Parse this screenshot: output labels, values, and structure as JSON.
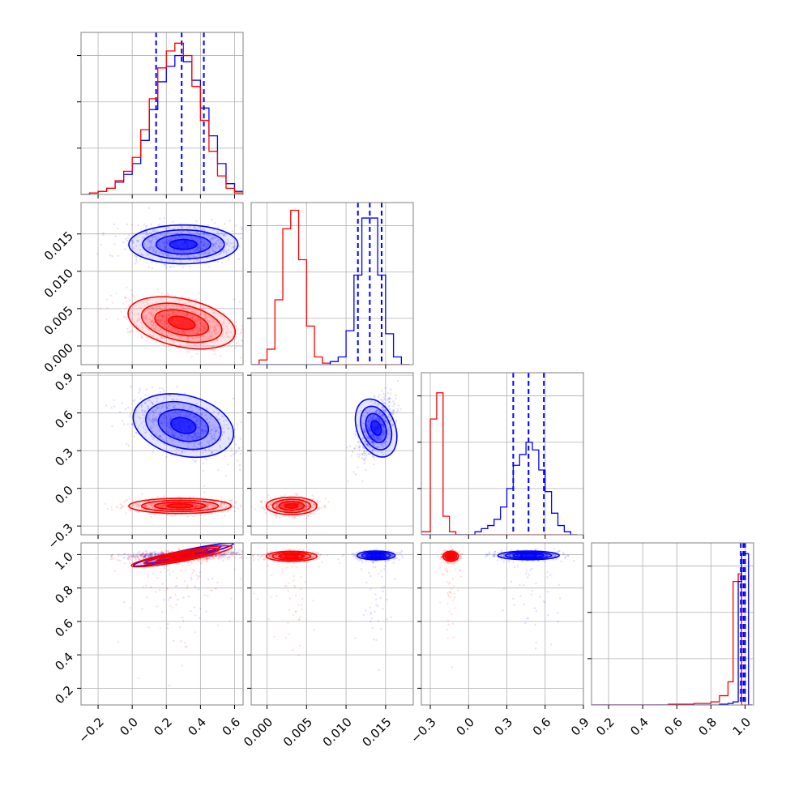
{
  "figure": {
    "type": "corner_plot",
    "colors": {
      "series_a": "#0000ff",
      "series_b": "#ff0000",
      "grid": "#b0b0b0",
      "frame": "#808080"
    }
  },
  "chart_data": [
    {
      "type": "histogram",
      "id": "hist-param1",
      "row": 0,
      "col": 0,
      "xlim": [
        -0.3,
        0.65
      ],
      "ylim": [
        0,
        1.05
      ],
      "bins": [
        -0.3,
        -0.25,
        -0.2,
        -0.15,
        -0.1,
        -0.05,
        0.0,
        0.05,
        0.1,
        0.15,
        0.2,
        0.25,
        0.3,
        0.35,
        0.4,
        0.45,
        0.5,
        0.55,
        0.6,
        0.65
      ],
      "series": [
        {
          "color": "#0000ff",
          "counts": [
            0.0,
            0.01,
            0.02,
            0.04,
            0.08,
            0.13,
            0.2,
            0.35,
            0.55,
            0.73,
            0.83,
            0.9,
            0.86,
            0.74,
            0.56,
            0.38,
            0.2,
            0.07,
            0.02
          ],
          "quantiles": [
            0.14,
            0.29,
            0.42
          ]
        },
        {
          "color": "#ff0000",
          "counts": [
            0.0,
            0.01,
            0.02,
            0.04,
            0.09,
            0.15,
            0.24,
            0.42,
            0.62,
            0.82,
            0.93,
            0.98,
            0.9,
            0.7,
            0.48,
            0.28,
            0.12,
            0.04,
            0.01
          ]
        }
      ],
      "xticks": [
        -0.2,
        0.0,
        0.2,
        0.4,
        0.6
      ]
    },
    {
      "type": "histogram",
      "id": "hist-param2",
      "row": 1,
      "col": 1,
      "xlim": [
        -0.002,
        0.0185
      ],
      "ylim": [
        0,
        1.05
      ],
      "bins": [
        -0.002,
        -0.001,
        0.0,
        0.001,
        0.002,
        0.003,
        0.004,
        0.005,
        0.006,
        0.007,
        0.008,
        0.009,
        0.01,
        0.011,
        0.012,
        0.013,
        0.014,
        0.015,
        0.016,
        0.017,
        0.018
      ],
      "series": [
        {
          "color": "#ff0000",
          "counts": [
            0.0,
            0.03,
            0.1,
            0.42,
            0.88,
            1.0,
            0.68,
            0.25,
            0.05,
            0.01,
            0.0,
            0.0,
            0.0,
            0.0,
            0.0,
            0.0,
            0.0,
            0.0,
            0.0,
            0.0
          ]
        },
        {
          "color": "#0000ff",
          "counts": [
            0.0,
            0.0,
            0.0,
            0.0,
            0.0,
            0.0,
            0.0,
            0.0,
            0.0,
            0.0,
            0.02,
            0.05,
            0.22,
            0.58,
            0.95,
            0.95,
            0.58,
            0.2,
            0.05,
            0.0
          ],
          "quantiles": [
            0.0115,
            0.013,
            0.0145
          ]
        }
      ],
      "xticks": [
        0.0,
        0.005,
        0.01,
        0.015
      ],
      "xticklabels": [
        "0.000",
        "0.005",
        "0.010",
        "0.015"
      ]
    },
    {
      "type": "histogram",
      "id": "hist-param3",
      "row": 2,
      "col": 2,
      "xlim": [
        -0.37,
        0.9
      ],
      "ylim": [
        0,
        1.05
      ],
      "bins": [
        -0.375,
        -0.3,
        -0.25,
        -0.2,
        -0.15,
        -0.1,
        -0.05,
        0.0,
        0.05,
        0.1,
        0.15,
        0.2,
        0.25,
        0.3,
        0.35,
        0.4,
        0.45,
        0.5,
        0.55,
        0.6,
        0.65,
        0.7,
        0.75,
        0.8,
        0.85
      ],
      "series": [
        {
          "color": "#ff0000",
          "counts": [
            0.02,
            0.75,
            0.92,
            0.12,
            0.02,
            0.0,
            0.0,
            0.0,
            0.0,
            0.0,
            0.0,
            0.0,
            0.0,
            0.0,
            0.0,
            0.0,
            0.0,
            0.0,
            0.0,
            0.0,
            0.0,
            0.0,
            0.0,
            0.0
          ]
        },
        {
          "color": "#0000ff",
          "counts": [
            0.0,
            0.0,
            0.0,
            0.0,
            0.0,
            0.0,
            0.0,
            0.0,
            0.02,
            0.04,
            0.06,
            0.1,
            0.18,
            0.3,
            0.45,
            0.52,
            0.6,
            0.55,
            0.42,
            0.28,
            0.14,
            0.06,
            0.02,
            0.0
          ],
          "quantiles": [
            0.35,
            0.47,
            0.59
          ]
        }
      ],
      "xticks": [
        -0.3,
        0.0,
        0.3,
        0.6,
        0.9
      ],
      "xticklabels": [
        "−0.3",
        "0.0",
        "0.3",
        "0.6",
        "0.9"
      ]
    },
    {
      "type": "histogram",
      "id": "hist-param4",
      "row": 3,
      "col": 3,
      "xlim": [
        0.1,
        1.05
      ],
      "ylim": [
        0,
        1.05
      ],
      "bins": [
        0.1,
        0.55,
        0.7,
        0.8,
        0.85,
        0.9,
        0.93,
        0.96,
        0.98,
        1.0,
        1.02,
        1.04
      ],
      "series": [
        {
          "color": "#ff0000",
          "counts": [
            0.0,
            0.005,
            0.01,
            0.02,
            0.06,
            0.15,
            0.8,
            0.85,
            0.0,
            0.0,
            0.0
          ]
        },
        {
          "color": "#0000ff",
          "counts": [
            0.0,
            0.0,
            0.0,
            0.0,
            0.005,
            0.01,
            0.02,
            0.8,
            0.98,
            0.98,
            0.0
          ],
          "quantiles": [
            0.975,
            0.99,
            1.0
          ]
        }
      ],
      "xticks": [
        0.2,
        0.4,
        0.6,
        0.8,
        1.0
      ]
    },
    {
      "type": "scatter_contour",
      "id": "p2-vs-p1",
      "row": 1,
      "col": 0,
      "xlim": [
        -0.3,
        0.65
      ],
      "ylim": [
        -0.0025,
        0.0192
      ],
      "yticks": [
        0.0,
        0.005,
        0.01,
        0.015
      ],
      "yticklabels": [
        "0.000",
        "0.005",
        "0.010",
        "0.015"
      ],
      "series": [
        {
          "color": "#0000ff",
          "mean": [
            0.3,
            0.0136
          ],
          "sd": [
            0.16,
            0.0013
          ],
          "rho": 0.0
        },
        {
          "color": "#ff0000",
          "mean": [
            0.29,
            0.0031
          ],
          "sd": [
            0.16,
            0.0016
          ],
          "rho": -0.35
        }
      ]
    },
    {
      "type": "scatter_contour",
      "id": "p3-vs-p1",
      "row": 2,
      "col": 0,
      "xlim": [
        -0.3,
        0.65
      ],
      "ylim": [
        -0.37,
        0.92
      ],
      "yticks": [
        -0.3,
        0.0,
        0.3,
        0.6,
        0.9
      ],
      "yticklabels": [
        "−0.3",
        "0.0",
        "0.3",
        "0.6",
        "0.9"
      ],
      "series": [
        {
          "color": "#0000ff",
          "mean": [
            0.3,
            0.5
          ],
          "sd": [
            0.15,
            0.12
          ],
          "rho": -0.4
        },
        {
          "color": "#ff0000",
          "mean": [
            0.28,
            -0.14
          ],
          "sd": [
            0.15,
            0.03
          ],
          "rho": 0.0
        }
      ]
    },
    {
      "type": "scatter_contour",
      "id": "p3-vs-p2",
      "row": 2,
      "col": 1,
      "xlim": [
        -0.002,
        0.0185
      ],
      "ylim": [
        -0.37,
        0.92
      ],
      "series": [
        {
          "color": "#0000ff",
          "mean": [
            0.0138,
            0.48
          ],
          "sd": [
            0.0012,
            0.12
          ],
          "rho": 0.6
        },
        {
          "color": "#ff0000",
          "mean": [
            0.0031,
            -0.14
          ],
          "sd": [
            0.0016,
            0.035
          ],
          "rho": 0.0
        }
      ]
    },
    {
      "type": "scatter_contour",
      "id": "p4-vs-p1",
      "row": 3,
      "col": 0,
      "xlim": [
        -0.3,
        0.65
      ],
      "ylim": [
        0.1,
        1.07
      ],
      "yticks": [
        0.2,
        0.4,
        0.6,
        0.8,
        1.0
      ],
      "yticklabels": [
        "0.2",
        "0.4",
        "0.6",
        "0.8",
        "1.0"
      ],
      "series": [
        {
          "color": "#0000ff",
          "mean": [
            0.3,
            1.0
          ],
          "sd": [
            0.15,
            0.012
          ],
          "rho": 0.35
        },
        {
          "color": "#ff0000",
          "mean": [
            0.29,
            0.99
          ],
          "sd": [
            0.15,
            0.015
          ],
          "rho": 0.3
        }
      ]
    },
    {
      "type": "scatter_contour",
      "id": "p4-vs-p2",
      "row": 3,
      "col": 1,
      "xlim": [
        -0.002,
        0.0185
      ],
      "ylim": [
        0.1,
        1.07
      ],
      "series": [
        {
          "color": "#0000ff",
          "mean": [
            0.0138,
            0.995
          ],
          "sd": [
            0.0012,
            0.013
          ],
          "rho": 0.0
        },
        {
          "color": "#ff0000",
          "mean": [
            0.0031,
            0.99
          ],
          "sd": [
            0.0016,
            0.015
          ],
          "rho": 0.0
        }
      ]
    },
    {
      "type": "scatter_contour",
      "id": "p4-vs-p3",
      "row": 3,
      "col": 2,
      "xlim": [
        -0.37,
        0.9
      ],
      "ylim": [
        0.1,
        1.07
      ],
      "series": [
        {
          "color": "#0000ff",
          "mean": [
            0.47,
            0.995
          ],
          "sd": [
            0.12,
            0.013
          ],
          "rho": 0.0
        },
        {
          "color": "#ff0000",
          "mean": [
            -0.14,
            0.99
          ],
          "sd": [
            0.03,
            0.015
          ],
          "rho": 0.0
        }
      ]
    }
  ]
}
